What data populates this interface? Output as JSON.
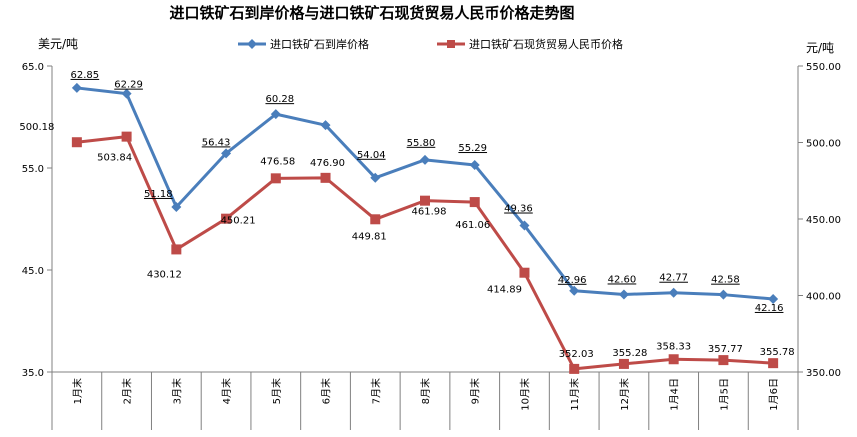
{
  "chart_data": {
    "type": "line",
    "title": "进口铁矿石到岸价格与进口铁矿石现货贸易人民币价格走势图",
    "ylabel_left": "美元/吨",
    "ylabel_right": "元/吨",
    "categories": [
      "1月末",
      "2月末",
      "3月末",
      "4月末",
      "5月末",
      "6月末",
      "7月末",
      "8月末",
      "9月末",
      "10月末",
      "11月末",
      "12月末",
      "1月4日",
      "1月5日",
      "1月6日"
    ],
    "y_left": {
      "min": 35,
      "max": 65,
      "ticks": [
        "35.0",
        "45.0",
        "55.0",
        "65.0"
      ]
    },
    "y_right": {
      "min": 350,
      "max": 550,
      "ticks": [
        "350.00",
        "400.00",
        "450.00",
        "500.00",
        "550.00"
      ]
    },
    "legend_position": "top",
    "series": [
      {
        "name": "进口铁矿石到岸价格",
        "axis": "left",
        "color": "#4a7ebb",
        "marker": "diamond",
        "values": [
          62.85,
          62.29,
          51.18,
          56.43,
          60.28,
          59.2,
          54.04,
          55.8,
          55.29,
          49.36,
          42.96,
          42.6,
          42.77,
          42.58,
          42.16
        ],
        "labels": [
          "62.85",
          "62.29",
          "51.18",
          "56.43",
          "60.28",
          "",
          "54.04",
          "55.80",
          "55.29",
          "49.36",
          "42.96",
          "42.60",
          "42.77",
          "42.58",
          "42.16"
        ]
      },
      {
        "name": "进口铁矿石现货贸易人民币价格",
        "axis": "right",
        "color": "#be4b48",
        "marker": "square",
        "values": [
          500.18,
          503.84,
          430.12,
          450.21,
          476.58,
          476.9,
          449.81,
          461.98,
          461.06,
          414.89,
          352.03,
          355.28,
          358.33,
          357.77,
          355.78
        ],
        "labels": [
          "500.18",
          "503.84",
          "430.12",
          "450.21",
          "476.58",
          "476.90",
          "449.81",
          "461.98",
          "461.06",
          "414.89",
          "352.03",
          "355.28",
          "358.33",
          "357.77",
          "355.78"
        ]
      }
    ]
  }
}
